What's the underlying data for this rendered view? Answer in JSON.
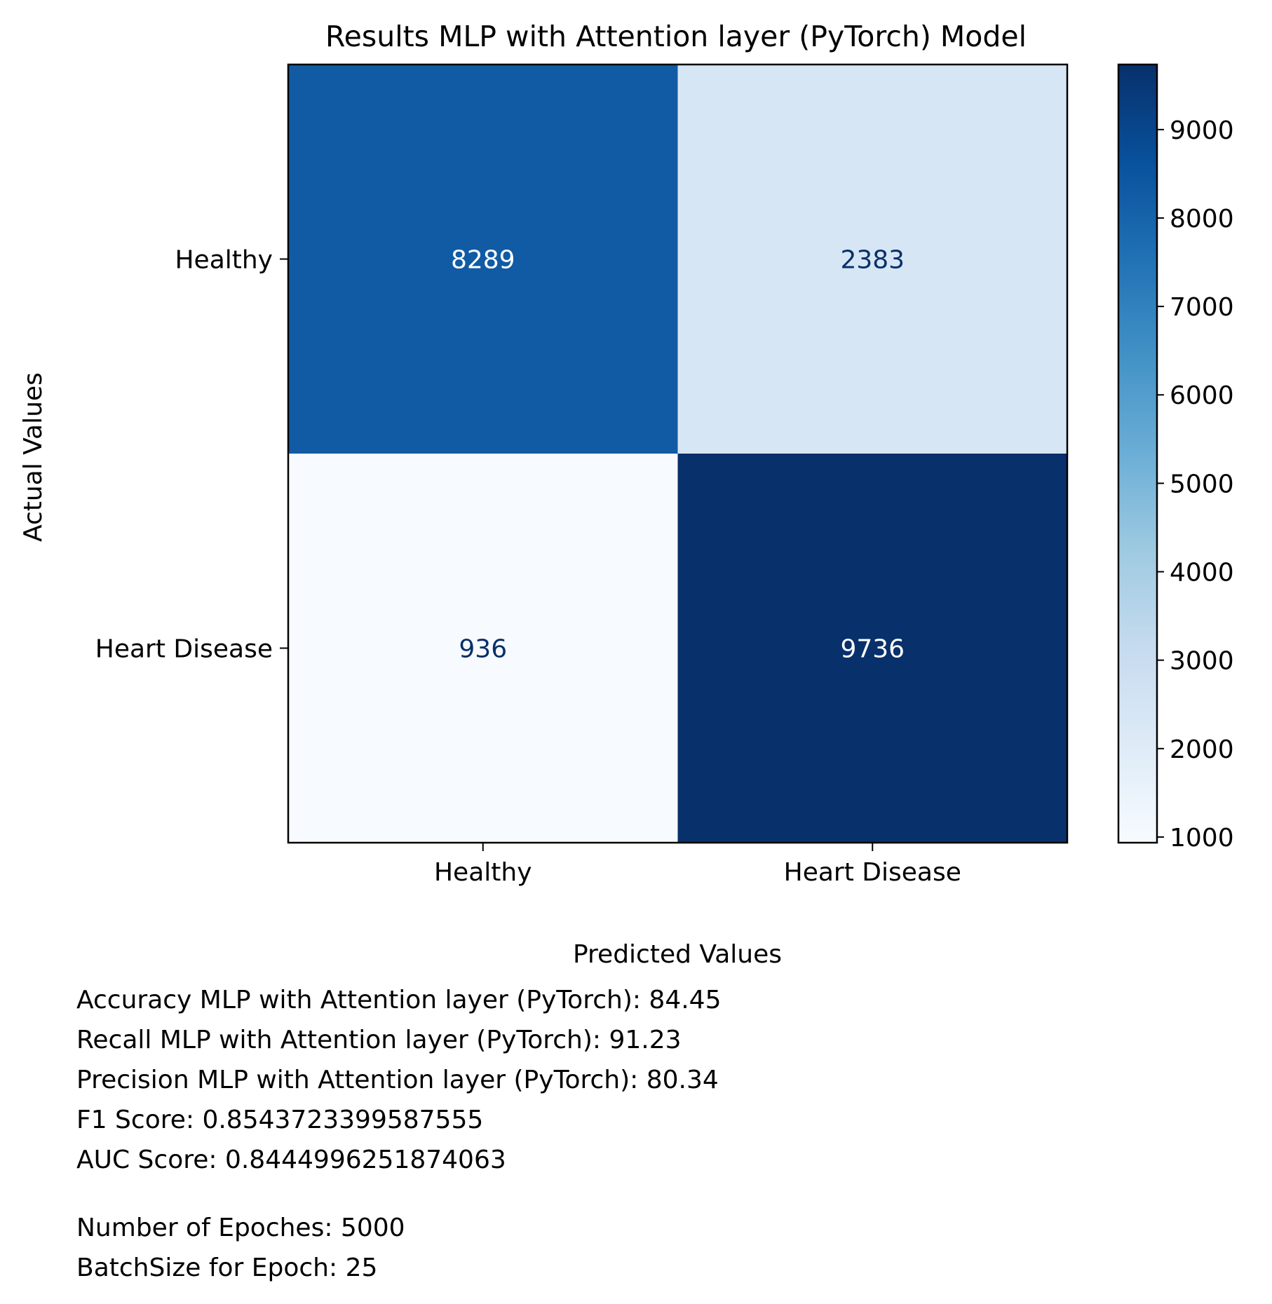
{
  "chart_data": {
    "type": "heatmap",
    "title": "Results MLP with Attention layer (PyTorch) Model",
    "xlabel": "Predicted Values",
    "ylabel": "Actual Values",
    "x_categories": [
      "Healthy",
      "Heart Disease"
    ],
    "y_categories": [
      "Healthy",
      "Heart Disease"
    ],
    "matrix": [
      [
        8289,
        2383
      ],
      [
        936,
        9736
      ]
    ],
    "colormap": "Blues",
    "colorbar": {
      "range": [
        936,
        9736
      ],
      "ticks": [
        1000,
        2000,
        3000,
        4000,
        5000,
        6000,
        7000,
        8000,
        9000
      ],
      "tick_labels": [
        "1000",
        "2000",
        "3000",
        "4000",
        "5000",
        "6000",
        "7000",
        "8000",
        "9000"
      ]
    },
    "text_colors": {
      "dark_cell": "#ffffff",
      "light_cell": "#08306b"
    },
    "grid": false
  },
  "metrics": {
    "accuracy": "Accuracy MLP with Attention layer (PyTorch): 84.45",
    "recall": "Recall MLP with Attention layer (PyTorch): 91.23",
    "precision": "Precision MLP with Attention layer (PyTorch): 80.34",
    "f1": "F1 Score: 0.8543723399587555",
    "auc": "AUC Score: 0.8444996251874063",
    "epochs": "Number of Epoches: 5000",
    "batch_size": "BatchSize for Epoch: 25"
  }
}
